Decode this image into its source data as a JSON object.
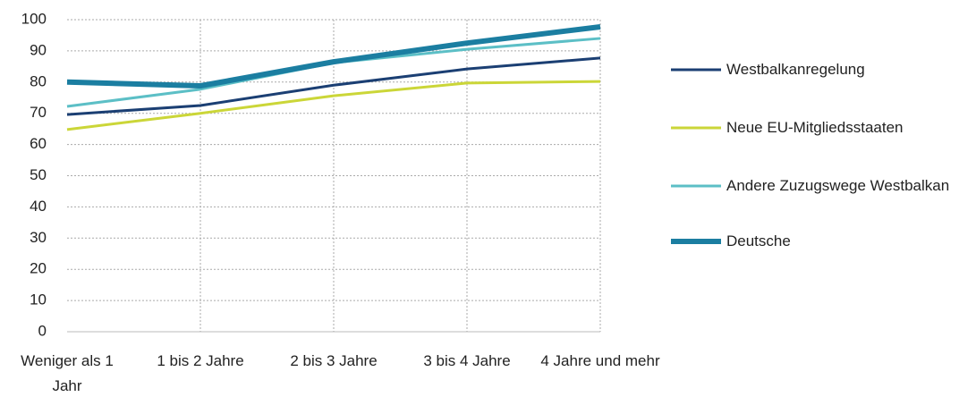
{
  "chart_data": {
    "type": "line",
    "categories": [
      "Weniger als 1 Jahr",
      "1 bis 2 Jahre",
      "2 bis 3 Jahre",
      "3 bis 4 Jahre",
      "4 Jahre und mehr"
    ],
    "series": [
      {
        "name": "Westbalkanregelung",
        "color": "#1b3f73",
        "values": [
          69.6,
          72.5,
          79,
          84.2,
          87.7
        ]
      },
      {
        "name": "Neue EU-Mitgliedsstaaten",
        "color": "#cbd638",
        "values": [
          64.8,
          70,
          75.6,
          79.7,
          80.2
        ]
      },
      {
        "name": "Andere Zuzugswege Westbalkan",
        "color": "#5cbfc6",
        "values": [
          72.2,
          77.7,
          86.2,
          90.5,
          94
        ]
      },
      {
        "name": "Deutsche",
        "color": "#1b7ea1",
        "values": [
          80,
          78.8,
          86.5,
          92.5,
          97.7
        ]
      }
    ],
    "ylim": [
      0,
      100
    ],
    "yticks": [
      0,
      10,
      20,
      30,
      40,
      50,
      60,
      70,
      80,
      90,
      100
    ],
    "grid": true
  }
}
